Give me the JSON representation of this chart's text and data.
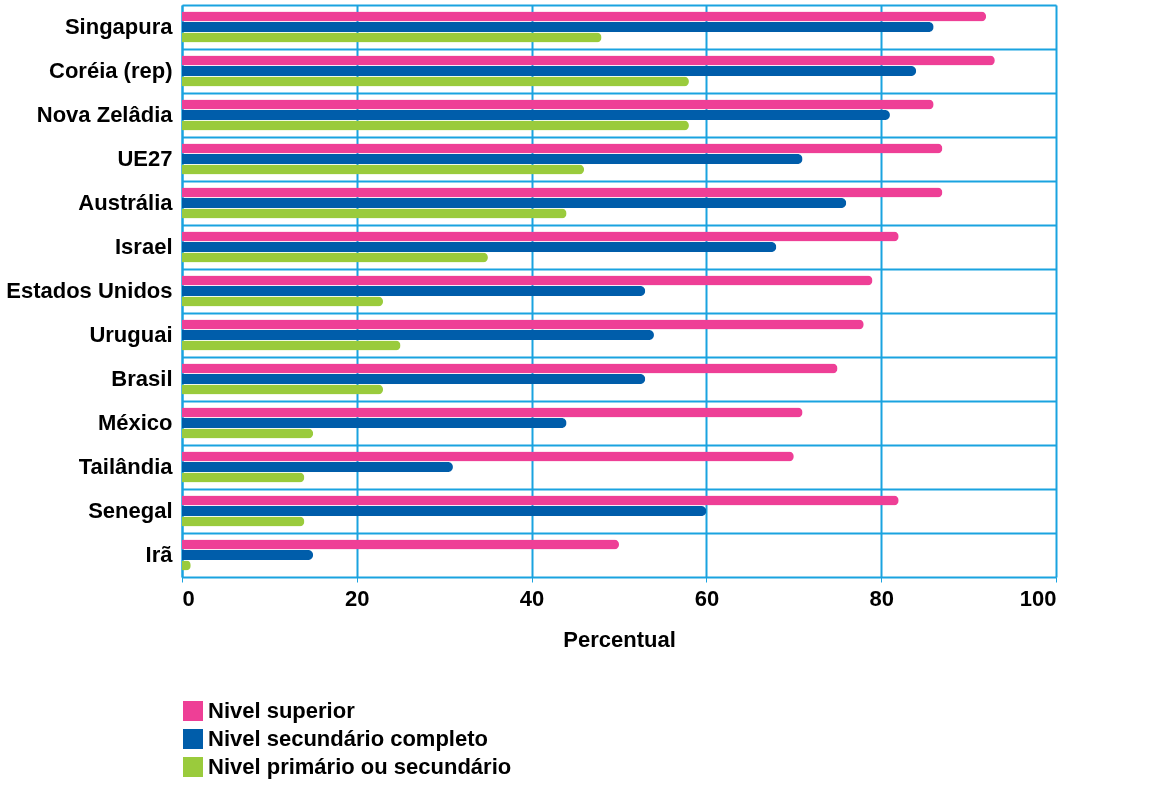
{
  "chart_data": {
    "type": "bar",
    "orientation": "horizontal",
    "xlabel": "Percentual",
    "categories": [
      "Singapura",
      "Coréia (rep)",
      "Nova Zelâdia",
      "UE27",
      "Austrália",
      "Israel",
      "Estados Unidos",
      "Uruguai",
      "Brasil",
      "México",
      "Tailândia",
      "Senegal",
      "Irã"
    ],
    "series": [
      {
        "name": "Nivel superior",
        "color": "#ee3f96",
        "values": [
          92,
          93,
          86,
          87,
          87,
          82,
          79,
          78,
          75,
          71,
          70,
          82,
          50
        ]
      },
      {
        "name": "Nivel secundário completo",
        "color": "#005daa",
        "values": [
          86,
          84,
          81,
          71,
          76,
          68,
          53,
          54,
          53,
          44,
          31,
          60,
          15
        ]
      },
      {
        "name": "Nivel primário ou secundário",
        "color": "#9acb3c",
        "values": [
          48,
          58,
          58,
          46,
          44,
          35,
          23,
          25,
          23,
          15,
          14,
          14,
          1
        ]
      }
    ],
    "xlim": [
      0,
      100
    ],
    "xticks": [
      0,
      20,
      40,
      60,
      80,
      100
    ],
    "grid": true,
    "legend": "bottom left"
  }
}
